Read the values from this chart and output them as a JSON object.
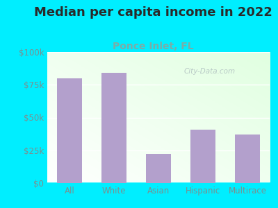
{
  "title": "Median per capita income in 2022",
  "subtitle": "Ponce Inlet, FL",
  "categories": [
    "All",
    "White",
    "Asian",
    "Hispanic",
    "Multirace"
  ],
  "values": [
    80000,
    84000,
    22000,
    41000,
    37000
  ],
  "bar_color": "#b3a0cc",
  "title_fontsize": 13,
  "subtitle_fontsize": 10,
  "subtitle_color": "#7aada8",
  "title_color": "#2a2a2a",
  "tick_color": "#7a9090",
  "bg_outer": "#00eeff",
  "ylim": [
    0,
    100000
  ],
  "yticks": [
    0,
    25000,
    50000,
    75000,
    100000
  ],
  "ytick_labels": [
    "$0",
    "$25k",
    "$50k",
    "$75k",
    "$100k"
  ],
  "watermark": "City-Data.com",
  "grid_color": "#ccddcc",
  "bottom_color": "#c8eec8",
  "top_color": "#f8ffff"
}
